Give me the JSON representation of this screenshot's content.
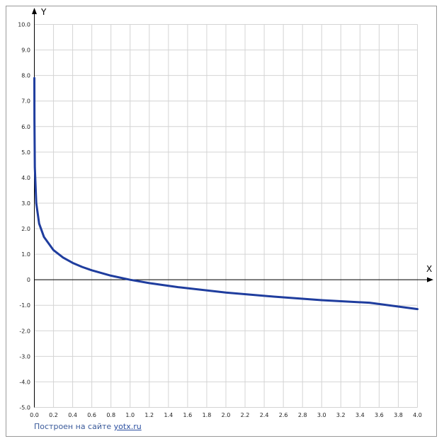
{
  "chart_data": {
    "type": "line",
    "xlabel": "X",
    "ylabel": "Y",
    "xlim": [
      0,
      4
    ],
    "ylim": [
      -5,
      10
    ],
    "grid": true,
    "x_ticks": [
      "0.0",
      "0.2",
      "0.4",
      "0.6",
      "0.8",
      "1.0",
      "1.2",
      "1.4",
      "1.6",
      "1.8",
      "2.0",
      "2.2",
      "2.4",
      "2.6",
      "2.8",
      "3.0",
      "3.2",
      "3.4",
      "3.6",
      "3.8",
      "4.0"
    ],
    "y_ticks": [
      "-5.0",
      "-4.0",
      "-3.0",
      "-2.0",
      "-1.0",
      "0",
      "1.0",
      "2.0",
      "3.0",
      "4.0",
      "5.0",
      "6.0",
      "7.0",
      "8.0",
      "9.0",
      "10.0"
    ],
    "series": [
      {
        "color": "#1f3d9e",
        "x": [
          0.0002,
          0.001,
          0.005,
          0.02,
          0.05,
          0.1,
          0.2,
          0.3,
          0.4,
          0.5,
          0.6,
          0.8,
          1.0,
          1.2,
          1.5,
          2.0,
          2.5,
          3.0,
          3.5,
          4.0
        ],
        "y": [
          7.9,
          6.3,
          4.4,
          3.0,
          2.2,
          1.68,
          1.16,
          0.87,
          0.66,
          0.5,
          0.37,
          0.16,
          0.0,
          -0.13,
          -0.29,
          -0.5,
          -0.66,
          -0.8,
          -0.9,
          -1.15
        ]
      }
    ]
  },
  "credit": {
    "text": "Построен на сайте",
    "link": "yotx.ru"
  }
}
